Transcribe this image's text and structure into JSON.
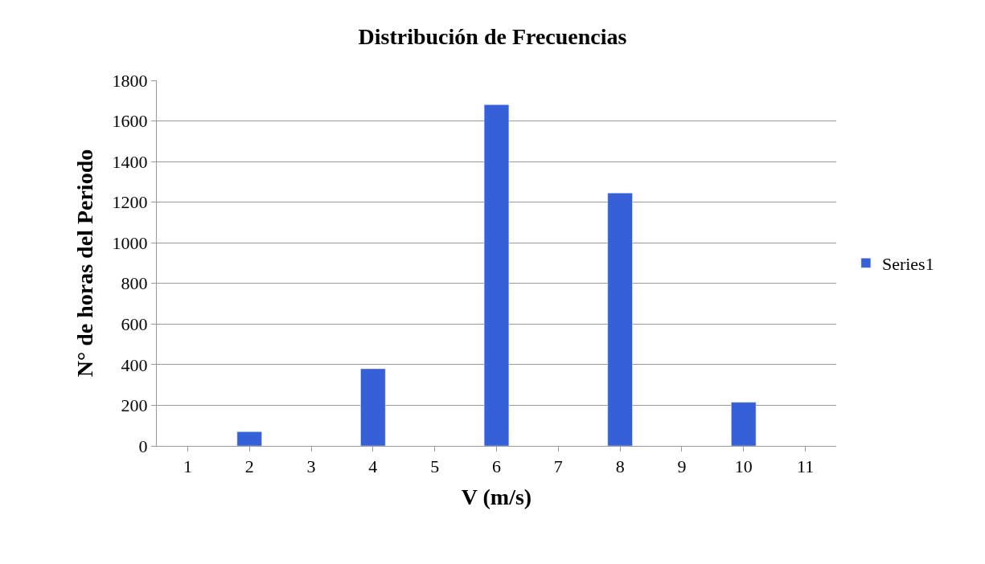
{
  "chart_data": {
    "type": "bar",
    "title": "Distribución de Frecuencias",
    "xlabel": "V (m/s)",
    "ylabel": "N° de horas del Periodo",
    "categories": [
      "1",
      "2",
      "3",
      "4",
      "5",
      "6",
      "7",
      "8",
      "9",
      "10",
      "11"
    ],
    "series": [
      {
        "name": "Series1",
        "color": "#3560d8",
        "values": [
          null,
          70,
          null,
          380,
          null,
          1680,
          null,
          1245,
          null,
          215,
          null
        ]
      }
    ],
    "ylim": [
      0,
      1800
    ],
    "yticks": [
      0,
      200,
      400,
      600,
      800,
      1000,
      1200,
      1400,
      1600,
      1800
    ],
    "grid": "y",
    "legend": "right"
  }
}
